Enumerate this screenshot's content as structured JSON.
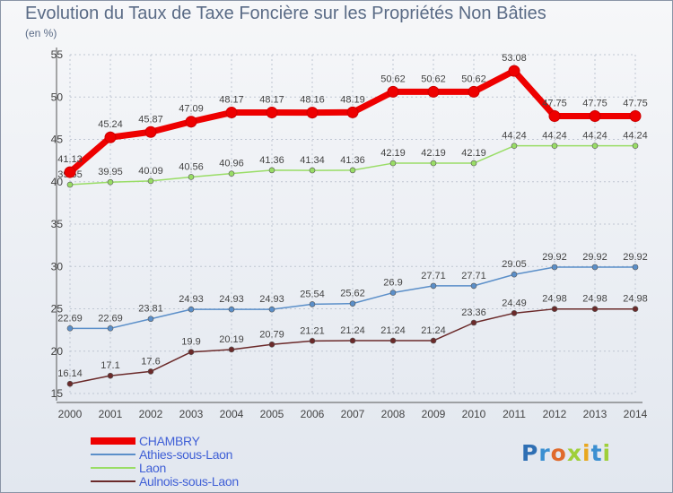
{
  "title": "Evolution du Taux de Taxe Foncière sur les Propriétés Non Bâties",
  "unit": "(en %)",
  "logo_letters": [
    {
      "char": "P",
      "color": "#2f6fb4"
    },
    {
      "char": "r",
      "color": "#3b8fd1"
    },
    {
      "char": "o",
      "color": "#e06a2c"
    },
    {
      "char": "x",
      "color": "#9fcf3a"
    },
    {
      "char": "i",
      "color": "#e8a71f"
    },
    {
      "char": "t",
      "color": "#3b8fd1"
    },
    {
      "char": "i",
      "color": "#9fcf3a"
    }
  ],
  "chart_data": {
    "type": "line",
    "title": "Evolution du Taux de Taxe Foncière sur les Propriétés Non Bâties",
    "ylabel": "(en %)",
    "xlabel": "",
    "x": [
      2000,
      2001,
      2002,
      2003,
      2004,
      2005,
      2006,
      2007,
      2008,
      2009,
      2010,
      2011,
      2012,
      2013,
      2014
    ],
    "ylim": [
      15,
      55
    ],
    "yticks": [
      15,
      20,
      25,
      30,
      35,
      40,
      45,
      50,
      55
    ],
    "grid": true,
    "legend_position": "bottom-left",
    "series": [
      {
        "name": "CHAMBRY",
        "color": "#ee0000",
        "values": [
          41.13,
          45.24,
          45.87,
          47.09,
          48.17,
          48.17,
          48.16,
          48.19,
          50.62,
          50.62,
          50.62,
          53.08,
          47.75,
          47.75,
          47.75
        ],
        "labels": [
          "41.13",
          "45.24",
          "45.87",
          "47.09",
          "48.17",
          "48.17",
          "48.16",
          "48.19",
          "50.62",
          "50.62",
          "50.62",
          "53.08",
          "47.75",
          "47.75",
          "47.75"
        ]
      },
      {
        "name": "Athies-sous-Laon",
        "color": "#5b8fc9",
        "values": [
          22.69,
          22.69,
          23.81,
          24.93,
          24.93,
          24.93,
          25.54,
          25.62,
          26.9,
          27.71,
          27.71,
          29.05,
          29.92,
          29.92,
          29.92
        ],
        "labels": [
          "22.69",
          "22.69",
          "23.81",
          "24.93",
          "24.93",
          "24.93",
          "25.54",
          "25.62",
          "26.9",
          "27.71",
          "27.71",
          "29.05",
          "29.92",
          "29.92",
          "29.92"
        ]
      },
      {
        "name": "Laon",
        "color": "#99dd66",
        "values": [
          39.65,
          39.95,
          40.09,
          40.56,
          40.96,
          41.36,
          41.34,
          41.36,
          42.19,
          42.19,
          42.19,
          44.24,
          44.24,
          44.24,
          44.24
        ],
        "labels": [
          "39.65",
          "39.95",
          "40.09",
          "40.56",
          "40.96",
          "41.36",
          "41.34",
          "41.36",
          "42.19",
          "42.19",
          "42.19",
          "44.24",
          "44.24",
          "44.24",
          "44.24"
        ]
      },
      {
        "name": "Aulnois-sous-Laon",
        "color": "#6b2a2a",
        "values": [
          16.14,
          17.1,
          17.6,
          19.9,
          20.19,
          20.79,
          21.21,
          21.24,
          21.24,
          21.24,
          23.36,
          24.49,
          24.98,
          24.98,
          24.98
        ],
        "labels": [
          "16.14",
          "17.1",
          "17.6",
          "19.9",
          "20.19",
          "20.79",
          "21.21",
          "21.24",
          "21.24",
          "21.24",
          "23.36",
          "24.49",
          "24.98",
          "24.98",
          "24.98"
        ]
      }
    ]
  }
}
